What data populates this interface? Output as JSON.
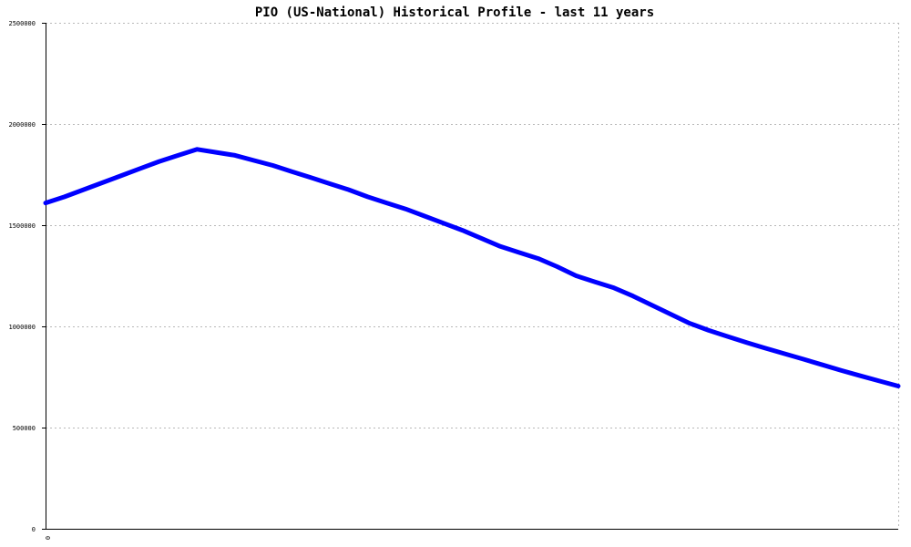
{
  "chart_data": {
    "type": "line",
    "title": "PIO (US-National) Historical Profile - last 11 years",
    "xlabel": "",
    "ylabel": "",
    "x_tick_labels": [
      "0"
    ],
    "y_ticks": [
      "0",
      "500000",
      "1000000",
      "1500000",
      "2000000",
      "2500000"
    ],
    "ylim": [
      0,
      2500000
    ],
    "grid": true,
    "grid_axis": "y",
    "legend": "none",
    "colors": {
      "series": "#0000ff",
      "axis": "#000000",
      "grid": "#b8b8b8",
      "background": "#ffffff"
    },
    "series": [
      {
        "values": [
          1610000,
          1640000,
          1675000,
          1710000,
          1745000,
          1780000,
          1815000,
          1845000,
          1875000,
          1860000,
          1845000,
          1820000,
          1795000,
          1765000,
          1735000,
          1705000,
          1675000,
          1640000,
          1610000,
          1580000,
          1545000,
          1510000,
          1475000,
          1435000,
          1395000,
          1365000,
          1335000,
          1295000,
          1250000,
          1220000,
          1190000,
          1150000,
          1105000,
          1060000,
          1015000,
          980000,
          950000,
          920000,
          892000,
          865000,
          838000,
          810000,
          782000,
          756000,
          730000,
          705000
        ]
      }
    ]
  }
}
